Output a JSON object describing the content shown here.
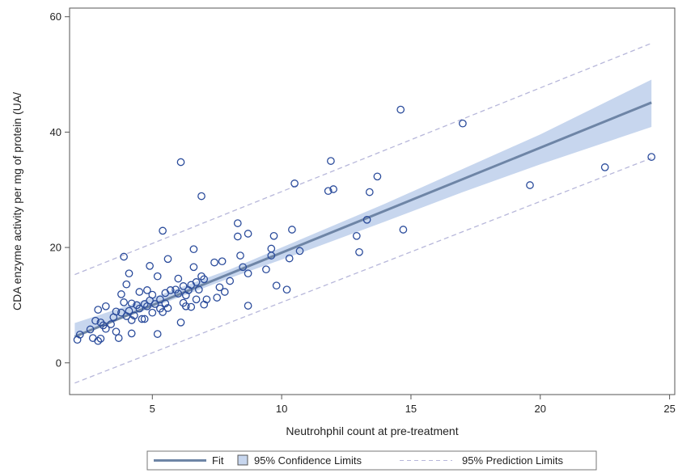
{
  "chart_data": {
    "type": "scatter",
    "xlabel": "Neutrohphil count at pre-treatment",
    "ylabel": "CDA enzyme activity per mg of protein (UA/",
    "xlim": [
      1.8,
      25.2
    ],
    "ylim": [
      -5.5,
      61.5
    ],
    "x_ticks": [
      5,
      10,
      15,
      20,
      25
    ],
    "y_ticks": [
      0,
      20,
      40,
      60
    ],
    "grid": false,
    "legend_position": "bottom",
    "legend": {
      "fit": "Fit",
      "confidence": "95% Confidence Limits",
      "prediction": "95% Prediction Limits"
    },
    "colors": {
      "points": "#2a4b9b",
      "fit": "#6e85a6",
      "confidence_band": "#c7d6ee",
      "prediction": "#b7b7da",
      "frame": "#555555"
    },
    "fit": {
      "intercept": 0.9,
      "slope": 1.82
    },
    "confidence_band": [
      {
        "x": 2,
        "lower": 4.6,
        "upper": 6.9
      },
      {
        "x": 5,
        "lower": 9.6,
        "upper": 11.3
      },
      {
        "x": 8,
        "lower": 14.7,
        "upper": 16.2
      },
      {
        "x": 11,
        "lower": 19.5,
        "upper": 21.9
      },
      {
        "x": 14,
        "lower": 24.5,
        "upper": 27.6
      },
      {
        "x": 17,
        "lower": 29.6,
        "upper": 33.6
      },
      {
        "x": 20,
        "lower": 34.4,
        "upper": 39.6
      },
      {
        "x": 24.3,
        "lower": 40.9,
        "upper": 49.1
      }
    ],
    "prediction_limits": [
      {
        "x": 2,
        "lower": -3.5,
        "upper": 15.3
      },
      {
        "x": 24.3,
        "lower": 35.5,
        "upper": 55.4
      }
    ],
    "points": [
      {
        "x": 2.1,
        "y": 4.0
      },
      {
        "x": 2.2,
        "y": 4.9
      },
      {
        "x": 2.6,
        "y": 5.8
      },
      {
        "x": 2.7,
        "y": 4.3
      },
      {
        "x": 2.8,
        "y": 7.3
      },
      {
        "x": 2.9,
        "y": 3.8
      },
      {
        "x": 2.9,
        "y": 9.2
      },
      {
        "x": 3.0,
        "y": 4.2
      },
      {
        "x": 3.0,
        "y": 7.0
      },
      {
        "x": 3.1,
        "y": 6.5
      },
      {
        "x": 3.2,
        "y": 9.8
      },
      {
        "x": 3.2,
        "y": 5.9
      },
      {
        "x": 3.4,
        "y": 6.7
      },
      {
        "x": 3.5,
        "y": 7.9
      },
      {
        "x": 3.6,
        "y": 8.9
      },
      {
        "x": 3.6,
        "y": 5.4
      },
      {
        "x": 3.7,
        "y": 4.3
      },
      {
        "x": 3.8,
        "y": 11.9
      },
      {
        "x": 3.8,
        "y": 8.7
      },
      {
        "x": 3.9,
        "y": 18.4
      },
      {
        "x": 3.9,
        "y": 10.5
      },
      {
        "x": 4.0,
        "y": 8.1
      },
      {
        "x": 4.0,
        "y": 13.6
      },
      {
        "x": 4.1,
        "y": 9.0
      },
      {
        "x": 4.1,
        "y": 15.5
      },
      {
        "x": 4.2,
        "y": 10.3
      },
      {
        "x": 4.2,
        "y": 7.4
      },
      {
        "x": 4.2,
        "y": 5.1
      },
      {
        "x": 4.3,
        "y": 8.2
      },
      {
        "x": 4.4,
        "y": 10.0
      },
      {
        "x": 4.5,
        "y": 12.3
      },
      {
        "x": 4.5,
        "y": 9.4
      },
      {
        "x": 4.6,
        "y": 7.6
      },
      {
        "x": 4.7,
        "y": 10.2
      },
      {
        "x": 4.7,
        "y": 7.6
      },
      {
        "x": 4.8,
        "y": 12.6
      },
      {
        "x": 4.8,
        "y": 9.8
      },
      {
        "x": 4.9,
        "y": 16.8
      },
      {
        "x": 4.9,
        "y": 10.8
      },
      {
        "x": 5.0,
        "y": 11.8
      },
      {
        "x": 5.0,
        "y": 8.7
      },
      {
        "x": 5.1,
        "y": 10.2
      },
      {
        "x": 5.2,
        "y": 15.0
      },
      {
        "x": 5.2,
        "y": 5.0
      },
      {
        "x": 5.3,
        "y": 11.0
      },
      {
        "x": 5.3,
        "y": 9.4
      },
      {
        "x": 5.4,
        "y": 22.9
      },
      {
        "x": 5.4,
        "y": 8.8
      },
      {
        "x": 5.5,
        "y": 10.3
      },
      {
        "x": 5.5,
        "y": 12.1
      },
      {
        "x": 5.6,
        "y": 9.5
      },
      {
        "x": 5.6,
        "y": 18.0
      },
      {
        "x": 5.7,
        "y": 12.6
      },
      {
        "x": 5.9,
        "y": 12.7
      },
      {
        "x": 6.0,
        "y": 14.6
      },
      {
        "x": 6.0,
        "y": 12.0
      },
      {
        "x": 6.1,
        "y": 34.8
      },
      {
        "x": 6.1,
        "y": 7.0
      },
      {
        "x": 6.2,
        "y": 10.4
      },
      {
        "x": 6.2,
        "y": 13.3
      },
      {
        "x": 6.3,
        "y": 11.7
      },
      {
        "x": 6.3,
        "y": 9.8
      },
      {
        "x": 6.4,
        "y": 12.6
      },
      {
        "x": 6.5,
        "y": 13.5
      },
      {
        "x": 6.5,
        "y": 9.7
      },
      {
        "x": 6.6,
        "y": 19.7
      },
      {
        "x": 6.6,
        "y": 16.6
      },
      {
        "x": 6.7,
        "y": 11.0
      },
      {
        "x": 6.7,
        "y": 14.0
      },
      {
        "x": 6.8,
        "y": 12.7
      },
      {
        "x": 6.9,
        "y": 28.9
      },
      {
        "x": 6.9,
        "y": 15.0
      },
      {
        "x": 7.0,
        "y": 10.1
      },
      {
        "x": 7.0,
        "y": 14.5
      },
      {
        "x": 7.1,
        "y": 11.0
      },
      {
        "x": 7.4,
        "y": 17.4
      },
      {
        "x": 7.5,
        "y": 11.3
      },
      {
        "x": 7.6,
        "y": 13.1
      },
      {
        "x": 7.7,
        "y": 17.6
      },
      {
        "x": 7.8,
        "y": 12.3
      },
      {
        "x": 8.0,
        "y": 14.2
      },
      {
        "x": 8.3,
        "y": 24.2
      },
      {
        "x": 8.3,
        "y": 21.9
      },
      {
        "x": 8.4,
        "y": 18.6
      },
      {
        "x": 8.5,
        "y": 16.6
      },
      {
        "x": 8.7,
        "y": 22.4
      },
      {
        "x": 8.7,
        "y": 15.5
      },
      {
        "x": 8.7,
        "y": 9.9
      },
      {
        "x": 9.4,
        "y": 16.2
      },
      {
        "x": 9.6,
        "y": 19.8
      },
      {
        "x": 9.6,
        "y": 18.6
      },
      {
        "x": 9.7,
        "y": 22.0
      },
      {
        "x": 9.8,
        "y": 13.4
      },
      {
        "x": 10.2,
        "y": 12.7
      },
      {
        "x": 10.3,
        "y": 18.1
      },
      {
        "x": 10.4,
        "y": 23.1
      },
      {
        "x": 10.5,
        "y": 31.1
      },
      {
        "x": 10.7,
        "y": 19.4
      },
      {
        "x": 11.8,
        "y": 29.8
      },
      {
        "x": 11.9,
        "y": 35.0
      },
      {
        "x": 12.0,
        "y": 30.1
      },
      {
        "x": 12.9,
        "y": 22.0
      },
      {
        "x": 13.0,
        "y": 19.2
      },
      {
        "x": 13.3,
        "y": 24.8
      },
      {
        "x": 13.4,
        "y": 29.6
      },
      {
        "x": 13.7,
        "y": 32.3
      },
      {
        "x": 14.6,
        "y": 43.9
      },
      {
        "x": 14.7,
        "y": 23.1
      },
      {
        "x": 17.0,
        "y": 41.5
      },
      {
        "x": 19.6,
        "y": 30.8
      },
      {
        "x": 22.5,
        "y": 33.9
      },
      {
        "x": 24.3,
        "y": 35.7
      }
    ]
  }
}
